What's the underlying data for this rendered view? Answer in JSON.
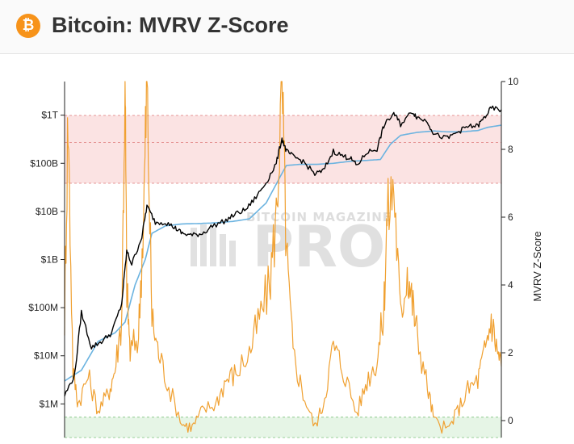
{
  "header": {
    "title": "Bitcoin: MVRV Z-Score",
    "logo_symbol": "₿",
    "logo_color": "#f7931a"
  },
  "watermark": {
    "line1": "BITCOIN MAGAZINE",
    "line2": "PRO"
  },
  "chart_data": {
    "type": "line",
    "title": "Bitcoin: MVRV Z-Score",
    "x_range": [
      "2011-07",
      "2024-06"
    ],
    "y_left": {
      "label": "",
      "scale": "log",
      "ticks": [
        "$1M",
        "$10M",
        "$100M",
        "$1B",
        "$10B",
        "$100B",
        "$1T"
      ],
      "tick_values": [
        1000000.0,
        10000000.0,
        100000000.0,
        1000000000.0,
        10000000000.0,
        100000000000.0,
        1000000000000.0
      ],
      "range": [
        200000.0,
        5000000000000.0
      ]
    },
    "y_right": {
      "label": "MVRV Z-Score",
      "scale": "linear",
      "ticks": [
        "0",
        "2",
        "4",
        "6",
        "8",
        "10"
      ],
      "tick_values": [
        0,
        2,
        4,
        6,
        8,
        10
      ],
      "range": [
        -0.5,
        10
      ]
    },
    "bands": [
      {
        "name": "overvalued zone",
        "axis": "right",
        "from": 7,
        "to": 9,
        "color": "#fbe3e3",
        "border": "#e07a7a"
      },
      {
        "name": "undervalued zone",
        "axis": "right",
        "from": -0.5,
        "to": 0.1,
        "color": "#e6f5e6",
        "border": "#7cc47c"
      }
    ],
    "dashed_lines": [
      {
        "axis": "right",
        "value": 8.2
      }
    ],
    "colors": {
      "market_cap": "#000000",
      "realized_cap": "#6bb3e0",
      "z_score": "#f0a030"
    },
    "series": [
      {
        "axis": "left",
        "t": [
          2011.5,
          2011.8,
          2012.0,
          2012.3,
          2012.6,
          2012.9,
          2013.2,
          2013.35,
          2013.5,
          2013.8,
          2013.95,
          2014.2,
          2014.5,
          2014.8,
          2015.0,
          2015.3,
          2015.6,
          2015.9,
          2016.3,
          2016.6,
          2016.9,
          2017.2,
          2017.5,
          2017.8,
          2017.97,
          2018.1,
          2018.3,
          2018.6,
          2018.95,
          2019.2,
          2019.5,
          2019.8,
          2020.0,
          2020.2,
          2020.5,
          2020.8,
          2021.0,
          2021.3,
          2021.5,
          2021.85,
          2022.0,
          2022.3,
          2022.5,
          2022.9,
          2023.2,
          2023.5,
          2023.8,
          2024.0,
          2024.2,
          2024.5
        ],
        "values": [
          1500000,
          4000000,
          80000000,
          15000000,
          20000000,
          30000000,
          120000000,
          1500000000,
          800000000,
          3000000000,
          13000000000,
          6000000000,
          6000000000,
          4500000000,
          3500000000,
          3200000000,
          3500000000,
          5000000000,
          6500000000,
          9000000000,
          11000000000,
          20000000000,
          40000000000,
          100000000000,
          330000000000,
          180000000000,
          140000000000,
          110000000000,
          60000000000,
          70000000000,
          180000000000,
          140000000000,
          130000000000,
          90000000000,
          170000000000,
          200000000000,
          600000000000,
          1100000000000,
          650000000000,
          1200000000000,
          900000000000,
          750000000000,
          400000000000,
          330000000000,
          450000000000,
          580000000000,
          600000000000,
          900000000000,
          1400000000000,
          1300000000000
        ]
      },
      {
        "axis": "left",
        "t": [
          2011.5,
          2012.0,
          2012.5,
          2013.0,
          2013.3,
          2013.6,
          2013.9,
          2014.1,
          2014.5,
          2015.0,
          2015.5,
          2016.0,
          2016.5,
          2017.0,
          2017.5,
          2017.9,
          2018.1,
          2018.5,
          2019.0,
          2019.5,
          2020.0,
          2020.5,
          2020.9,
          2021.2,
          2021.5,
          2022.0,
          2022.5,
          2022.9,
          2023.3,
          2023.8,
          2024.1,
          2024.5
        ],
        "values": [
          3000000,
          5000000,
          20000000,
          30000000,
          50000000,
          300000000,
          1000000000,
          3500000000,
          5000000000,
          5500000000,
          5600000000,
          5800000000,
          6200000000,
          7000000000,
          15000000000,
          50000000000,
          90000000000,
          95000000000,
          95000000000,
          100000000000,
          110000000000,
          115000000000,
          120000000000,
          250000000000,
          380000000000,
          440000000000,
          470000000000,
          450000000000,
          450000000000,
          480000000000,
          560000000000,
          620000000000
        ]
      },
      {
        "name": "MVRV Z-Score",
        "axis": "right",
        "t": [
          2011.5,
          2011.6,
          2011.75,
          2011.9,
          2012.2,
          2012.5,
          2012.8,
          2013.0,
          2013.2,
          2013.3,
          2013.35,
          2013.45,
          2013.7,
          2013.85,
          2013.95,
          2014.1,
          2014.3,
          2014.6,
          2015.0,
          2015.3,
          2015.6,
          2016.0,
          2016.3,
          2016.6,
          2017.0,
          2017.3,
          2017.6,
          2017.8,
          2017.97,
          2018.1,
          2018.3,
          2018.6,
          2018.95,
          2019.2,
          2019.5,
          2019.8,
          2020.2,
          2020.5,
          2020.8,
          2021.0,
          2021.1,
          2021.3,
          2021.5,
          2021.7,
          2021.85,
          2022.0,
          2022.3,
          2022.5,
          2022.9,
          2023.2,
          2023.5,
          2023.8,
          2024.0,
          2024.2,
          2024.35,
          2024.5
        ],
        "values": [
          3,
          9,
          1.5,
          0.5,
          1.3,
          0.3,
          0.8,
          1.5,
          3,
          10,
          4,
          2,
          2.5,
          6,
          10,
          3,
          2,
          1,
          -0.1,
          -0.2,
          0.3,
          0.5,
          1.2,
          1.4,
          2,
          3,
          4,
          6,
          10,
          5,
          2,
          0.8,
          -0.2,
          0.5,
          2.2,
          1.5,
          0.2,
          1.2,
          1.8,
          3.2,
          6,
          7,
          3,
          4.5,
          3.5,
          2.5,
          1,
          0,
          -0.3,
          0.3,
          0.9,
          1.2,
          2,
          3,
          2.2,
          1.6
        ]
      }
    ]
  }
}
